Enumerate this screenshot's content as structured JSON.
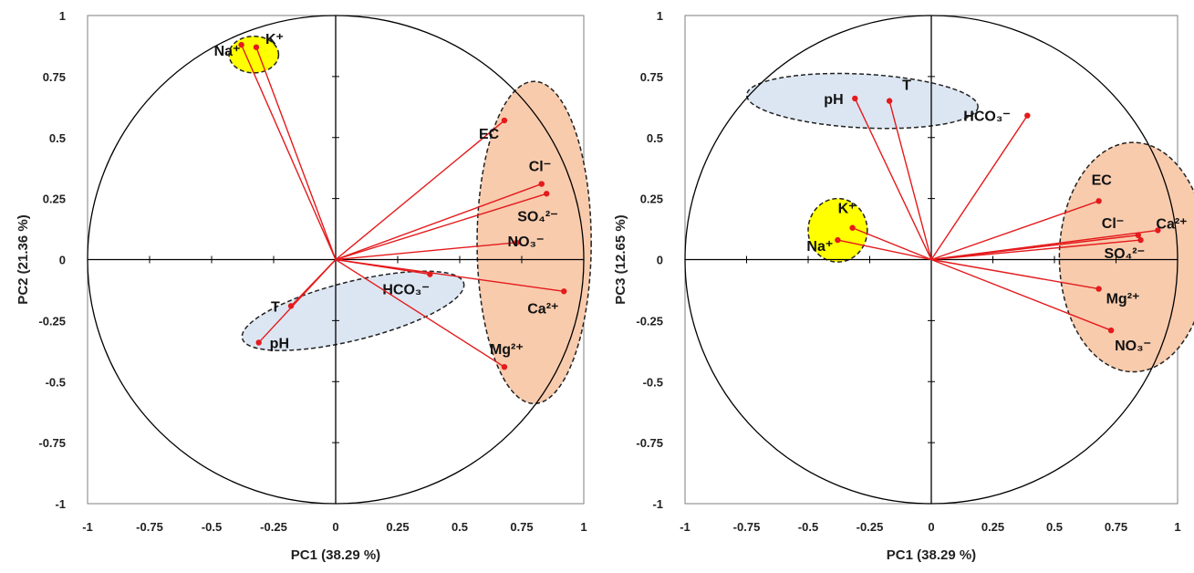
{
  "chart_data": [
    {
      "type": "scatter",
      "xlabel": "PC1 (38.29 %)",
      "ylabel": "PC2 (21.36 %)",
      "xlim": [
        -1,
        1
      ],
      "ylim": [
        -1,
        1
      ],
      "x_ticks": [
        "-1",
        "-0.75",
        "-0.5",
        "-0.25",
        "0",
        "0.25",
        "0.5",
        "0.75",
        "1"
      ],
      "y_ticks": [
        "1",
        "0.75",
        "0.5",
        "0.25",
        "0",
        "-0.25",
        "-0.5",
        "-0.75",
        "-1"
      ],
      "grid": false,
      "points": [
        {
          "label": "Na⁺",
          "x": -0.38,
          "y": 0.88
        },
        {
          "label": "K⁺",
          "x": -0.32,
          "y": 0.87
        },
        {
          "label": "EC",
          "x": 0.68,
          "y": 0.57
        },
        {
          "label": "Cl⁻",
          "x": 0.83,
          "y": 0.31
        },
        {
          "label": "SO₄²⁻",
          "x": 0.85,
          "y": 0.27
        },
        {
          "label": "NO₃⁻",
          "x": 0.73,
          "y": 0.07
        },
        {
          "label": "HCO₃⁻",
          "x": 0.38,
          "y": -0.06
        },
        {
          "label": "Ca²⁺",
          "x": 0.92,
          "y": -0.13
        },
        {
          "label": "T",
          "x": -0.18,
          "y": -0.19
        },
        {
          "label": "pH",
          "x": -0.31,
          "y": -0.34
        },
        {
          "label": "Mg²⁺",
          "x": 0.68,
          "y": -0.44
        }
      ]
    },
    {
      "type": "scatter",
      "xlabel": "PC1 (38.29 %)",
      "ylabel": "PC3 (12.65 %)",
      "xlim": [
        -1,
        1
      ],
      "ylim": [
        -1,
        1
      ],
      "x_ticks": [
        "-1",
        "-0.75",
        "-0.5",
        "-0.25",
        "0",
        "0.25",
        "0.5",
        "0.75",
        "1"
      ],
      "y_ticks": [
        "1",
        "0.75",
        "0.5",
        "0.25",
        "0",
        "-0.25",
        "-0.5",
        "-0.75",
        "-1"
      ],
      "grid": false,
      "points": [
        {
          "label": "pH",
          "x": -0.31,
          "y": 0.66
        },
        {
          "label": "T",
          "x": -0.17,
          "y": 0.65
        },
        {
          "label": "HCO₃⁻",
          "x": 0.39,
          "y": 0.59
        },
        {
          "label": "EC",
          "x": 0.68,
          "y": 0.24
        },
        {
          "label": "K⁺",
          "x": -0.32,
          "y": 0.13
        },
        {
          "label": "Na⁺",
          "x": -0.38,
          "y": 0.08
        },
        {
          "label": "Cl⁻",
          "x": 0.84,
          "y": 0.1
        },
        {
          "label": "Ca²⁺",
          "x": 0.92,
          "y": 0.12
        },
        {
          "label": "SO₄²⁻",
          "x": 0.85,
          "y": 0.08
        },
        {
          "label": "Mg²⁺",
          "x": 0.68,
          "y": -0.12
        },
        {
          "label": "NO₃⁻",
          "x": 0.73,
          "y": -0.29
        }
      ]
    }
  ],
  "colors": {
    "vector": "#e41a1c",
    "yellow_group": "#ffff00",
    "blue_group": "#dce6f2",
    "orange_group": "#f8cbad",
    "axis": "#000000"
  }
}
